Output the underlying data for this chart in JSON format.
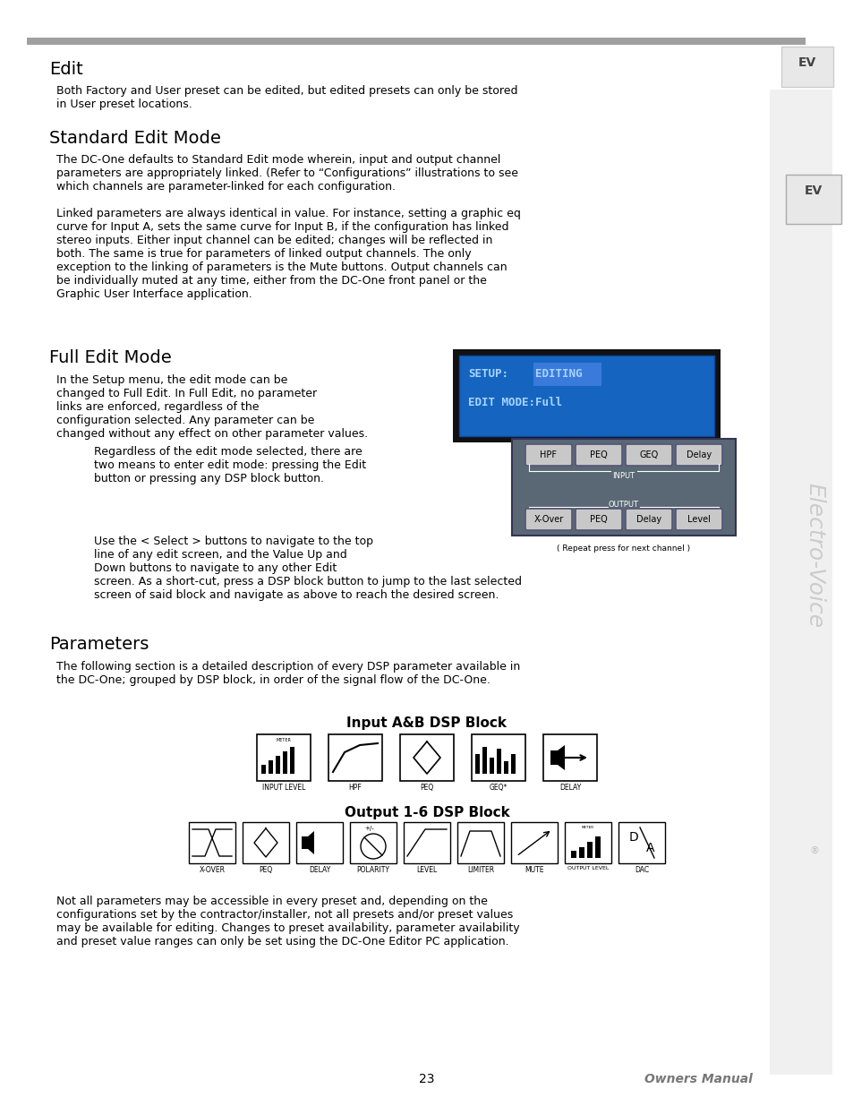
{
  "bg_color": "#ffffff",
  "page_width": 9.54,
  "page_height": 12.35,
  "text_color": "#000000",
  "heading_color": "#000000",
  "lcd_blue": "#1565c0",
  "lcd_text_color": "#00eeff",
  "body_fontsize": 9.0,
  "heading1_fontsize": 13.5,
  "edit_heading": "Edit",
  "edit_body": "Both Factory and User preset can be edited, but edited presets can only be stored\nin User preset locations.",
  "std_heading": "Standard Edit Mode",
  "std_body1": "The DC-One defaults to Standard Edit mode wherein, input and output channel\nparameters are appropriately linked. (Refer to “Configurations” illustrations to see\nwhich channels are parameter-linked for each configuration.",
  "std_body2": "Linked parameters are always identical in value. For instance, setting a graphic eq\ncurve for Input A, sets the same curve for Input B, if the configuration has linked\nstereo inputs. Either input channel can be edited; changes will be reflected in\nboth. The same is true for parameters of linked output channels. The only\nexception to the linking of parameters is the Mute buttons. Output channels can\nbe individually muted at any time, either from the DC-One front panel or the\nGraphic User Interface application.",
  "full_heading": "Full Edit Mode",
  "full_body1": "In the Setup menu, the edit mode can be\nchanged to Full Edit. In Full Edit, no parameter\nlinks are enforced, regardless of the\nconfiguration selected. Any parameter can be\nchanged without any effect on other parameter values.",
  "full_body2": "Regardless of the edit mode selected, there are\ntwo means to enter edit mode: pressing the Edit\nbutton or pressing any DSP block button.",
  "full_body3": "Use the < Select > buttons to navigate to the top\nline of any edit screen, and the Value Up and\nDown buttons to navigate to any other Edit\nscreen. As a short-cut, press a DSP block button to jump to the last selected\nscreen of said block and navigate as above to reach the desired screen.",
  "params_heading": "Parameters",
  "params_body": "The following section is a detailed description of every DSP parameter available in\nthe DC-One; grouped by DSP block, in order of the signal flow of the DC-One.",
  "input_block_heading": "Input A&B DSP Block",
  "output_block_heading": "Output 1-6 DSP Block",
  "params_note": "Not all parameters may be accessible in every preset and, depending on the\nconfigurations set by the contractor/installer, not all presets and/or preset values\nmay be available for editing. Changes to preset availability, parameter availability\nand preset value ranges can only be set using the DC-One Editor PC application.",
  "footer_text": "23",
  "footer_right": "Owners Manual",
  "panel_color": "#5a6875",
  "btn_color": "#c8c8c8",
  "btn_border": "#555577"
}
